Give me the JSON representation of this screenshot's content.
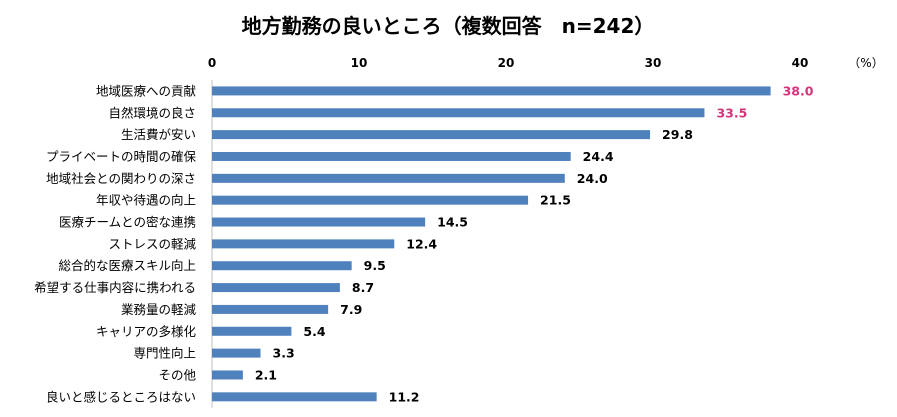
{
  "chart_data": {
    "type": "bar",
    "orientation": "horizontal",
    "title": "地方勤務の良いところ（複数回答　n=242）",
    "unit_label": "（%）",
    "xlim": [
      0,
      40
    ],
    "xticks": [
      0,
      10,
      20,
      30,
      40
    ],
    "categories": [
      "地域医療への貢献",
      "自然環境の良さ",
      "生活費が安い",
      "プライベートの時間の確保",
      "地域社会との関わりの深さ",
      "年収や待遇の向上",
      "医療チームとの密な連携",
      "ストレスの軽減",
      "総合的な医療スキル向上",
      "希望する仕事内容に携われる",
      "業務量の軽減",
      "キャリアの多様化",
      "専門性向上",
      "その他",
      "良いと感じるところはない"
    ],
    "values": [
      38.0,
      33.5,
      29.8,
      24.4,
      24.0,
      21.5,
      14.5,
      12.4,
      9.5,
      8.7,
      7.9,
      5.4,
      3.3,
      2.1,
      11.2
    ],
    "value_labels": [
      "38.0",
      "33.5",
      "29.8",
      "24.4",
      "24.0",
      "21.5",
      "14.5",
      "12.4",
      "9.5",
      "8.7",
      "7.9",
      "5.4",
      "3.3",
      "2.1",
      "11.2"
    ],
    "highlighted_indices": [
      0,
      1
    ],
    "colors": {
      "bar": "#4f81bd",
      "highlight_label": "#d6337a",
      "label": "#000000",
      "axis": "#bfbfbf"
    }
  }
}
